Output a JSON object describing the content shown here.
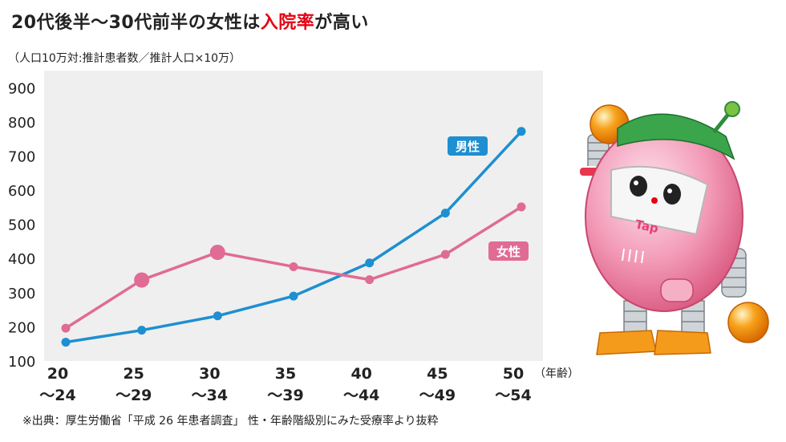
{
  "title": {
    "before": "20代後半〜30代前半の女性は",
    "accent": "入院率",
    "after": "が高い",
    "accent_color": "#e60012"
  },
  "unit_note": "（人口10万対:推計患者数／推計人口×10万）",
  "source": "※出典：厚生労働省「平成 26 年患者調査」 性・年齢階級別にみた受療率より抜粋",
  "chart_data": {
    "type": "line",
    "categories": [
      "20〜24",
      "25〜29",
      "30〜34",
      "35〜39",
      "40〜44",
      "45〜49",
      "50〜54"
    ],
    "tick_top": [
      "20",
      "25",
      "30",
      "35",
      "40",
      "45",
      "50"
    ],
    "tick_bottom": [
      "〜24",
      "〜29",
      "〜34",
      "〜39",
      "〜44",
      "〜49",
      "〜54"
    ],
    "x_unit": "（年齢）",
    "ylim": [
      100,
      950
    ],
    "yticks": [
      100,
      200,
      300,
      400,
      500,
      600,
      700,
      800,
      900
    ],
    "grid": false,
    "series": [
      {
        "name": "男性",
        "color": "#1e8fd0",
        "values": [
          155,
          190,
          232,
          290,
          387,
          533,
          772
        ],
        "highlight": []
      },
      {
        "name": "女性",
        "color": "#e06b94",
        "values": [
          196,
          337,
          418,
          376,
          338,
          412,
          551
        ],
        "highlight": [
          1,
          2
        ]
      }
    ]
  },
  "mascot": {
    "screen_label": "Tap",
    "icon": "pink-robot-mascot"
  }
}
